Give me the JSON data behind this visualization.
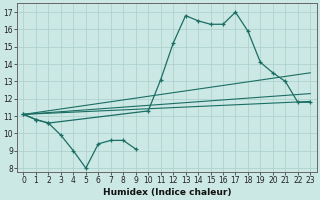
{
  "title": "",
  "xlabel": "Humidex (Indice chaleur)",
  "ylabel": "",
  "background_color": "#cce8e4",
  "grid_color": "#aacfcc",
  "line_color": "#1a6e64",
  "x_data": [
    0,
    1,
    2,
    3,
    4,
    5,
    6,
    7,
    8,
    9,
    10,
    11,
    12,
    13,
    14,
    15,
    16,
    17,
    18,
    19,
    20,
    21,
    22,
    23
  ],
  "line_dip_x": [
    0,
    1,
    2,
    3,
    4,
    5,
    6,
    7,
    8,
    9
  ],
  "line_dip_y": [
    11.1,
    10.8,
    10.6,
    9.9,
    9.0,
    8.0,
    9.4,
    9.6,
    9.6,
    9.1
  ],
  "line_peak_x": [
    0,
    1,
    2,
    10,
    11,
    12,
    13,
    14,
    15,
    16,
    17,
    18,
    19,
    20,
    21,
    22,
    23
  ],
  "line_peak_y": [
    11.1,
    10.8,
    10.6,
    11.3,
    13.1,
    15.2,
    16.8,
    16.5,
    16.3,
    16.3,
    17.0,
    15.9,
    14.1,
    13.5,
    13.0,
    11.8,
    11.8
  ],
  "trend1_x": [
    0,
    23
  ],
  "trend1_y": [
    11.1,
    11.85
  ],
  "trend2_x": [
    0,
    23
  ],
  "trend2_y": [
    11.1,
    13.5
  ],
  "trend3_x": [
    0,
    23
  ],
  "trend3_y": [
    11.1,
    12.3
  ],
  "ylim": [
    7.8,
    17.5
  ],
  "xlim": [
    -0.5,
    23.5
  ],
  "yticks": [
    8,
    9,
    10,
    11,
    12,
    13,
    14,
    15,
    16,
    17
  ],
  "xticks": [
    0,
    1,
    2,
    3,
    4,
    5,
    6,
    7,
    8,
    9,
    10,
    11,
    12,
    13,
    14,
    15,
    16,
    17,
    18,
    19,
    20,
    21,
    22,
    23
  ]
}
